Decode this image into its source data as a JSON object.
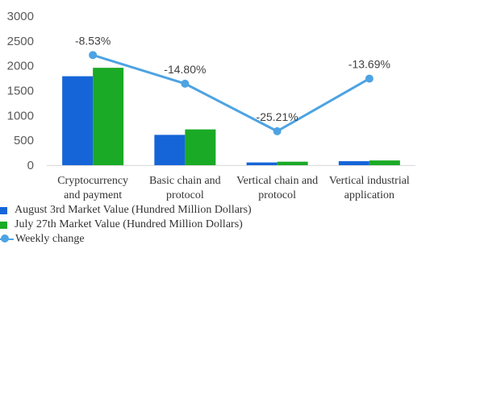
{
  "chart_data": {
    "type": "bar",
    "categories": [
      [
        "Cryptocurrency",
        "and payment"
      ],
      [
        "Basic chain and",
        "protocol"
      ],
      [
        "Vertical chain and",
        "protocol"
      ],
      [
        "Vertical industrial",
        "application"
      ]
    ],
    "ylim": [
      0,
      3000
    ],
    "yticks": [
      "0",
      "500",
      "1000",
      "1500",
      "2000",
      "2500",
      "3000"
    ],
    "series": [
      {
        "name": "August 3rd Market Value (Hundred Million Dollars)",
        "values": [
          1790,
          610,
          55,
          80
        ],
        "color": "#1565d8"
      },
      {
        "name": "July 27th Market Value (Hundred Million Dollars)",
        "values": [
          1960,
          720,
          70,
          95
        ],
        "color": "#1aaa26"
      }
    ],
    "line_series": {
      "name": "Weekly change",
      "values": [
        -8.53,
        -14.8,
        -25.21,
        -13.69
      ],
      "labels": [
        "-8.53%",
        "-14.80%",
        "-25.21%",
        "-13.69%"
      ],
      "color": "#4da3e3"
    },
    "legend_position": "bottom-left",
    "grid": false
  }
}
